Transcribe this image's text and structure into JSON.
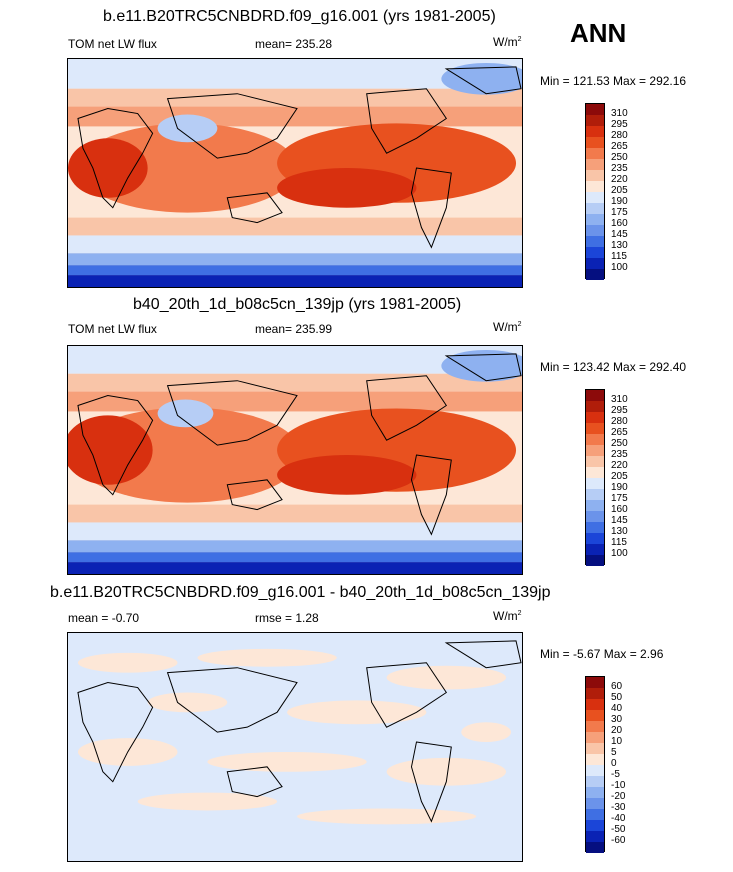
{
  "season": "ANN",
  "panels": [
    {
      "title": "b.e11.B20TRC5CNBDRD.f09_g16.001 (yrs 1981-2005)",
      "left_label": "TOM net LW flux",
      "center_label": "mean= 235.28",
      "units": "W/m",
      "units_sup": "2",
      "minmax": "Min = 121.53 Max = 292.16",
      "levels": [
        "310",
        "295",
        "280",
        "265",
        "250",
        "235",
        "220",
        "205",
        "190",
        "175",
        "160",
        "145",
        "130",
        "115",
        "100"
      ],
      "colors": [
        "#8c0a0a",
        "#b01d0a",
        "#d8300f",
        "#e8511f",
        "#f27a4c",
        "#f6a07a",
        "#f9c5a8",
        "#fde7d7",
        "#dde9fb",
        "#b6cdf5",
        "#8eb1f0",
        "#6b93ea",
        "#3f6fe3",
        "#1b45d8",
        "#0a22b4",
        "#050f80"
      ]
    },
    {
      "title": "b40_20th_1d_b08c5cn_139jp (yrs 1981-2005)",
      "left_label": "TOM net LW flux",
      "center_label": "mean= 235.99",
      "units": "W/m",
      "units_sup": "2",
      "minmax": "Min = 123.42 Max = 292.40",
      "levels": [
        "310",
        "295",
        "280",
        "265",
        "250",
        "235",
        "220",
        "205",
        "190",
        "175",
        "160",
        "145",
        "130",
        "115",
        "100"
      ],
      "colors": [
        "#8c0a0a",
        "#b01d0a",
        "#d8300f",
        "#e8511f",
        "#f27a4c",
        "#f6a07a",
        "#f9c5a8",
        "#fde7d7",
        "#dde9fb",
        "#b6cdf5",
        "#8eb1f0",
        "#6b93ea",
        "#3f6fe3",
        "#1b45d8",
        "#0a22b4",
        "#050f80"
      ]
    },
    {
      "title": "b.e11.B20TRC5CNBDRD.f09_g16.001 - b40_20th_1d_b08c5cn_139jp",
      "left_label": "mean =  -0.70",
      "center_label": "rmse =   1.28",
      "units": "W/m",
      "units_sup": "2",
      "minmax": "Min =  -5.67 Max =   2.96",
      "levels": [
        "60",
        "50",
        "40",
        "30",
        "20",
        "10",
        "5",
        "0",
        "-5",
        "-10",
        "-20",
        "-30",
        "-40",
        "-50",
        "-60"
      ],
      "colors": [
        "#8c0a0a",
        "#b01d0a",
        "#d8300f",
        "#e8511f",
        "#f27a4c",
        "#f6a07a",
        "#f9c5a8",
        "#fde7d7",
        "#dde9fb",
        "#b6cdf5",
        "#8eb1f0",
        "#6b93ea",
        "#3f6fe3",
        "#1b45d8",
        "#0a22b4",
        "#050f80"
      ]
    }
  ]
}
